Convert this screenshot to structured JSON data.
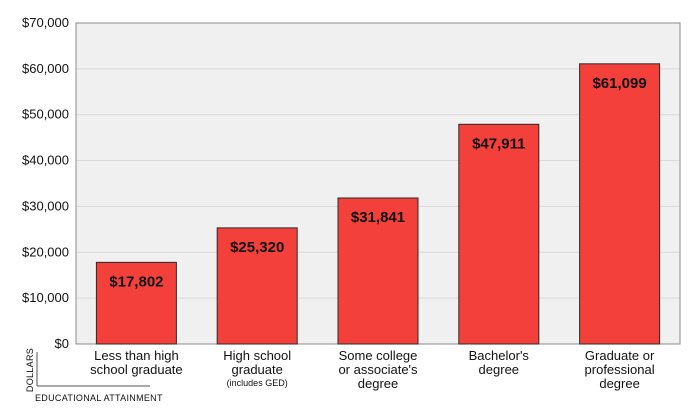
{
  "chart_data": {
    "type": "bar",
    "categories": [
      [
        "Less than high",
        "school graduate"
      ],
      [
        "High school",
        "graduate"
      ],
      [
        "Some college",
        "or associate's",
        "degree"
      ],
      [
        "Bachelor's",
        "degree"
      ],
      [
        "Graduate or",
        "professional",
        "degree"
      ]
    ],
    "category_notes": [
      "",
      "(includes GED)",
      "",
      "",
      ""
    ],
    "values": [
      17802,
      25320,
      31841,
      47911,
      61099
    ],
    "value_labels": [
      "$17,802",
      "$25,320",
      "$31,841",
      "$47,911",
      "$61,099"
    ],
    "y_ticks": [
      0,
      10000,
      20000,
      30000,
      40000,
      50000,
      60000,
      70000
    ],
    "y_tick_labels": [
      "$0",
      "$10,000",
      "$20,000",
      "$30,000",
      "$40,000",
      "$50,000",
      "$60,000",
      "$70,000"
    ],
    "ylim": [
      0,
      70000
    ],
    "ylabel": "DOLLARS",
    "xlabel": "EDUCATIONAL ATTAINMENT",
    "grid": true,
    "colors": {
      "bar_fill": "#f4403a",
      "bar_stroke": "#2a2a2a",
      "plot_background": "#f0f0f0",
      "grid": "#d9d9d9"
    }
  }
}
